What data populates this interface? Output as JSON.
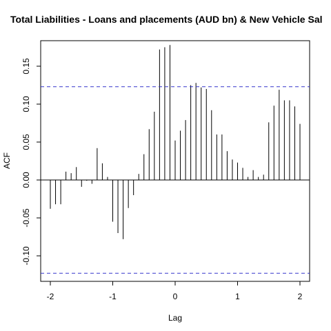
{
  "chart_data": {
    "type": "bar",
    "title": "Total Liabilities - Loans and placements (AUD bn) & New Vehicle Sal",
    "xlabel": "Lag",
    "ylabel": "ACF",
    "xlim": [
      -2.0,
      2.0
    ],
    "ylim": [
      -0.12,
      0.17
    ],
    "xticks": [
      -2,
      -1,
      0,
      1,
      2
    ],
    "yticks": [
      -0.1,
      -0.05,
      0.0,
      0.05,
      0.1,
      0.15
    ],
    "ytick_labels": [
      "-0.10",
      "-0.05",
      "0.00",
      "0.05",
      "0.10",
      "0.15"
    ],
    "confidence_bound": 0.123,
    "bound_color": "#3333cc",
    "bar_color": "#000000",
    "grid": false,
    "series": [
      {
        "x": [
          -2.0,
          -1.9167,
          -1.8333,
          -1.75,
          -1.6667,
          -1.5833,
          -1.5,
          -1.4167,
          -1.3333,
          -1.25,
          -1.1667,
          -1.0833,
          -1.0,
          -0.9167,
          -0.8333,
          -0.75,
          -0.6667,
          -0.5833,
          -0.5,
          -0.4167,
          -0.3333,
          -0.25,
          -0.1667,
          -0.0833,
          0.0,
          0.0833,
          0.1667,
          0.25,
          0.3333,
          0.4167,
          0.5,
          0.5833,
          0.6667,
          0.75,
          0.8333,
          0.9167,
          1.0,
          1.0833,
          1.1667,
          1.25,
          1.3333,
          1.4167,
          1.5,
          1.5833,
          1.6667,
          1.75,
          1.8333,
          1.9167,
          2.0
        ],
        "values": [
          -0.038,
          -0.032,
          -0.032,
          0.011,
          0.009,
          0.017,
          -0.009,
          -0.001,
          -0.005,
          0.042,
          0.022,
          0.004,
          -0.055,
          -0.07,
          -0.078,
          -0.037,
          -0.02,
          0.008,
          0.034,
          0.067,
          0.09,
          0.172,
          0.175,
          0.178,
          0.052,
          0.065,
          0.079,
          0.125,
          0.128,
          0.122,
          0.12,
          0.092,
          0.06,
          0.06,
          0.038,
          0.027,
          0.023,
          0.016,
          0.004,
          0.013,
          0.004,
          0.007,
          0.076,
          0.098,
          0.119,
          0.105,
          0.105,
          0.097,
          0.074
        ]
      }
    ]
  }
}
